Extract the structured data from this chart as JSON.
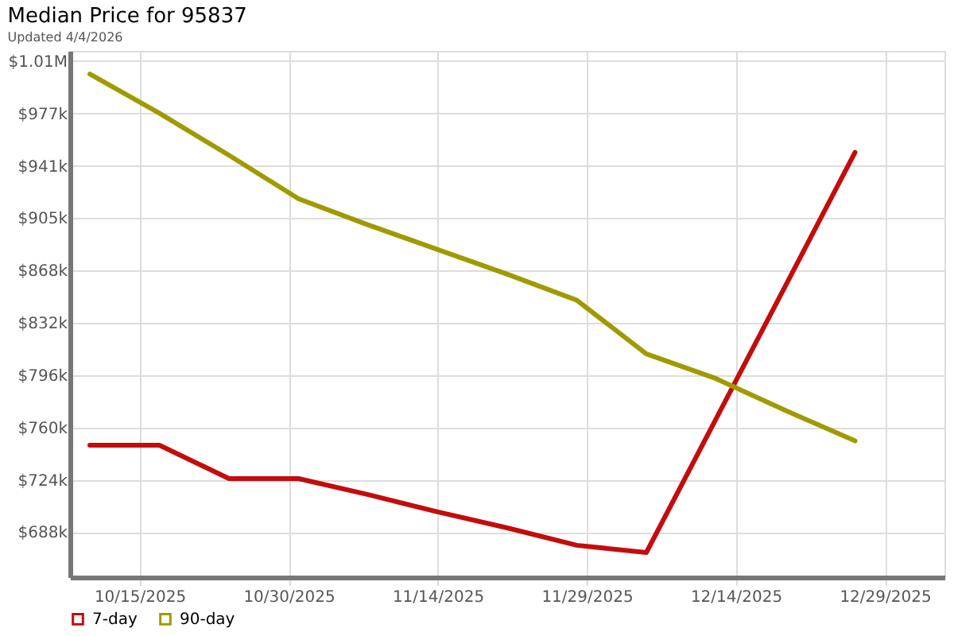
{
  "chart_data": {
    "type": "line",
    "title": "Median Price for 95837",
    "subtitle": "Updated 4/4/2026",
    "x": [
      "2025-10-10",
      "2025-10-17",
      "2025-10-24",
      "2025-10-31",
      "2025-11-07",
      "2025-11-14",
      "2025-11-21",
      "2025-11-28",
      "2025-12-05",
      "2025-12-12",
      "2025-12-19",
      "2025-12-26"
    ],
    "series": [
      {
        "name": "7-day",
        "color": "#c40c0c",
        "x": [
          "2025-10-10",
          "2025-10-17",
          "2025-10-24",
          "2025-10-31",
          "2025-11-07",
          "2025-11-14",
          "2025-11-21",
          "2025-11-28",
          "2025-12-05",
          "2025-12-26"
        ],
        "values": [
          748000,
          748000,
          725000,
          725000,
          714000,
          702000,
          691000,
          679000,
          674000,
          950000
        ]
      },
      {
        "name": "90-day",
        "color": "#a09a00",
        "values": [
          1004000,
          977000,
          948000,
          918000,
          900000,
          883000,
          866000,
          848000,
          811000,
          794000,
          772000,
          751000
        ]
      }
    ],
    "xlim": [
      "2025-10-08",
      "2026-01-04"
    ],
    "xticks": [
      {
        "value": "2025-10-15",
        "label": "10/15/2025"
      },
      {
        "value": "2025-10-30",
        "label": "10/30/2025"
      },
      {
        "value": "2025-11-14",
        "label": "11/14/2025"
      },
      {
        "value": "2025-11-29",
        "label": "11/29/2025"
      },
      {
        "value": "2025-12-14",
        "label": "12/14/2025"
      },
      {
        "value": "2025-12-29",
        "label": "12/29/2025"
      }
    ],
    "ylim": [
      657000,
      1020000
    ],
    "yticks": [
      {
        "value": 688000,
        "label": "$688k"
      },
      {
        "value": 724100,
        "label": "$724k"
      },
      {
        "value": 760200,
        "label": "$760k"
      },
      {
        "value": 796300,
        "label": "$796k"
      },
      {
        "value": 832400,
        "label": "$832k"
      },
      {
        "value": 868500,
        "label": "$868k"
      },
      {
        "value": 904600,
        "label": "$905k"
      },
      {
        "value": 940700,
        "label": "$941k"
      },
      {
        "value": 976800,
        "label": "$977k"
      },
      {
        "value": 1012900,
        "label": "$1.01M"
      }
    ],
    "grid": true,
    "legend": "bottom",
    "marker": "none",
    "line_style": "solid"
  }
}
